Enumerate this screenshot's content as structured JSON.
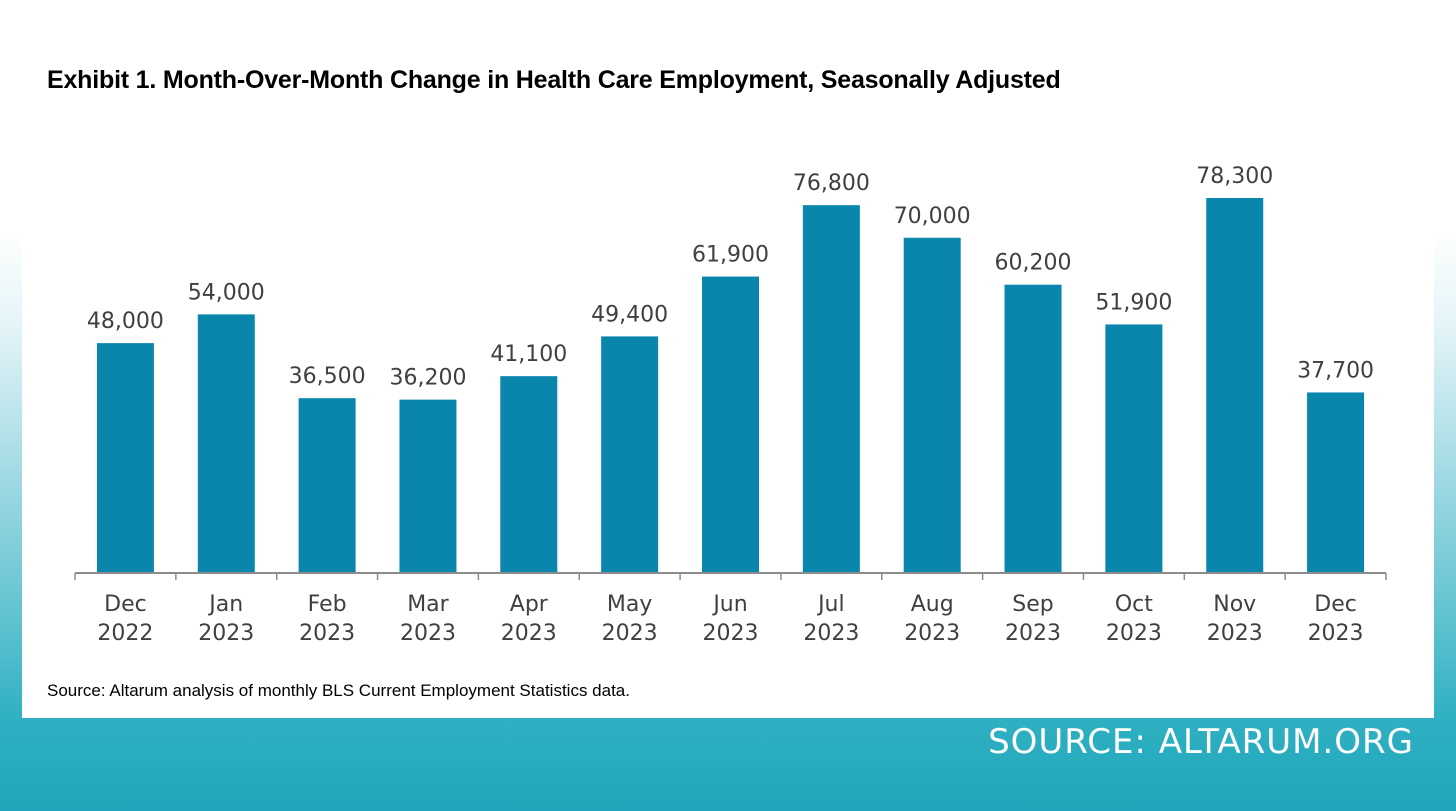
{
  "title": "Exhibit 1. Month-Over-Month Change in Health Care Employment, Seasonally Adjusted",
  "note": "Source: Altarum analysis of monthly BLS Current Employment Statistics data.",
  "credit": "SOURCE: ALTARUM.ORG",
  "colors": {
    "bar": "#0a86ad",
    "axis": "#8c8c8c",
    "label_text": "#404040",
    "background_top": "#ffffff",
    "background_bottom": "#1fa6ba"
  },
  "chart_data": {
    "type": "bar",
    "categories": [
      [
        "Dec",
        "2022"
      ],
      [
        "Jan",
        "2023"
      ],
      [
        "Feb",
        "2023"
      ],
      [
        "Mar",
        "2023"
      ],
      [
        "Apr",
        "2023"
      ],
      [
        "May",
        "2023"
      ],
      [
        "Jun",
        "2023"
      ],
      [
        "Jul",
        "2023"
      ],
      [
        "Aug",
        "2023"
      ],
      [
        "Sep",
        "2023"
      ],
      [
        "Oct",
        "2023"
      ],
      [
        "Nov",
        "2023"
      ],
      [
        "Dec",
        "2023"
      ]
    ],
    "values": [
      48000,
      54000,
      36500,
      36200,
      41100,
      49400,
      61900,
      76800,
      70000,
      60200,
      51900,
      78300,
      37700
    ],
    "data_labels": [
      "48,000",
      "54,000",
      "36,500",
      "36,200",
      "41,100",
      "49,400",
      "61,900",
      "76,800",
      "70,000",
      "60,200",
      "51,900",
      "78,300",
      "37,700"
    ],
    "ylim": [
      0,
      78300
    ],
    "grid": false,
    "legend": "none",
    "xlabel": "",
    "ylabel": ""
  }
}
